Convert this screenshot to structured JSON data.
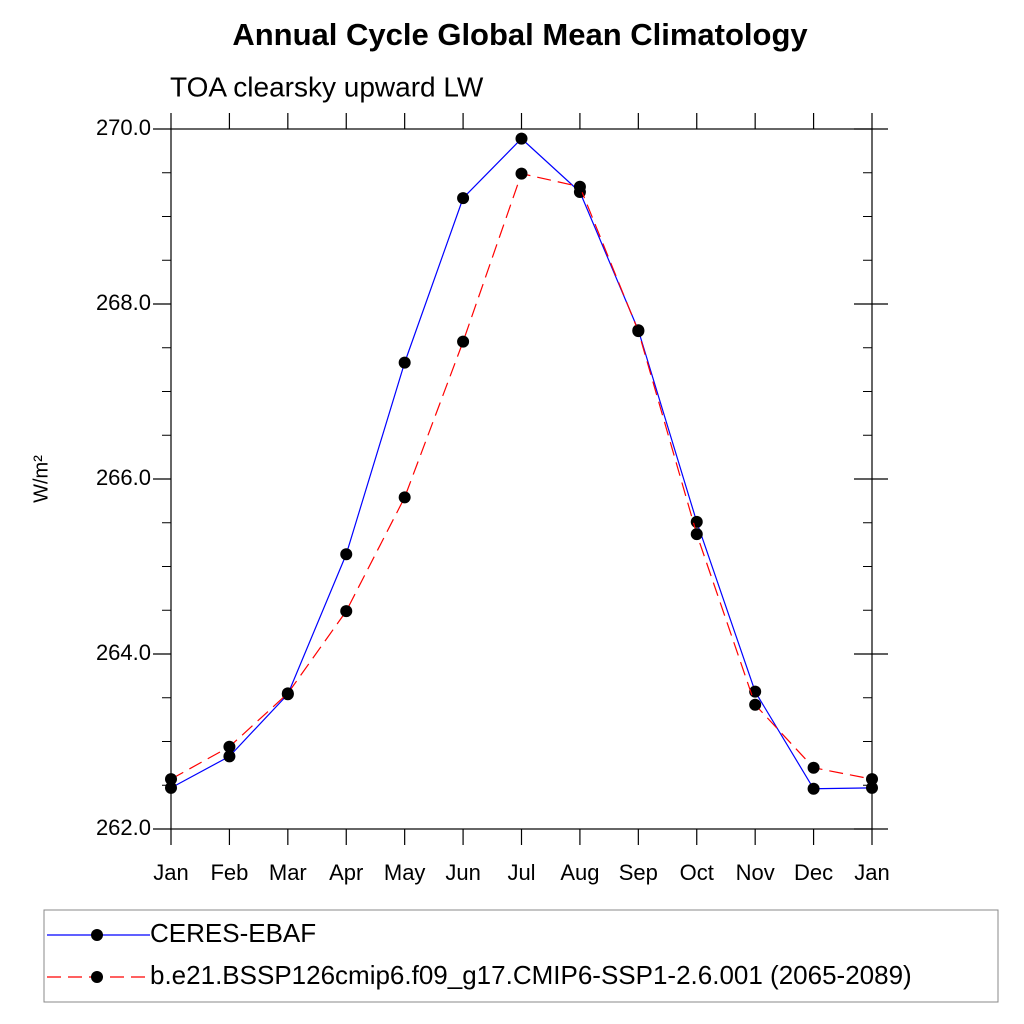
{
  "chart_data": {
    "type": "line",
    "title": "Annual Cycle Global Mean Climatology",
    "subtitle": "TOA clearsky upward LW",
    "ylabel": "W/m²",
    "categories": [
      "Jan",
      "Feb",
      "Mar",
      "Apr",
      "May",
      "Jun",
      "Jul",
      "Aug",
      "Sep",
      "Oct",
      "Nov",
      "Dec",
      "Jan"
    ],
    "ylim": [
      262,
      270
    ],
    "yticks": [
      {
        "value": 262,
        "label": "262.0"
      },
      {
        "value": 264,
        "label": "264.0"
      },
      {
        "value": 266,
        "label": "266.0"
      },
      {
        "value": 268,
        "label": "268.0"
      },
      {
        "value": 270,
        "label": "270.0"
      }
    ],
    "yminorticks": [
      262.5,
      263,
      263.5,
      264.5,
      265,
      265.5,
      266.5,
      267,
      267.5,
      268.5,
      269,
      269.5
    ],
    "series": [
      {
        "name": "CERES-EBAF",
        "color": "#0000ff",
        "linestyle": "solid",
        "values": [
          262.47,
          262.83,
          263.54,
          265.14,
          267.33,
          269.21,
          269.89,
          269.28,
          267.7,
          265.51,
          263.57,
          262.46,
          262.47
        ]
      },
      {
        "name": "b.e21.BSSP126cmip6.f09_g17.CMIP6-SSP1-2.6.001 (2065-2089)",
        "color": "#ff0000",
        "linestyle": "dashed",
        "values": [
          262.57,
          262.94,
          263.55,
          264.49,
          265.79,
          267.57,
          269.49,
          269.34,
          267.69,
          265.37,
          263.42,
          262.7,
          262.57
        ]
      }
    ]
  }
}
